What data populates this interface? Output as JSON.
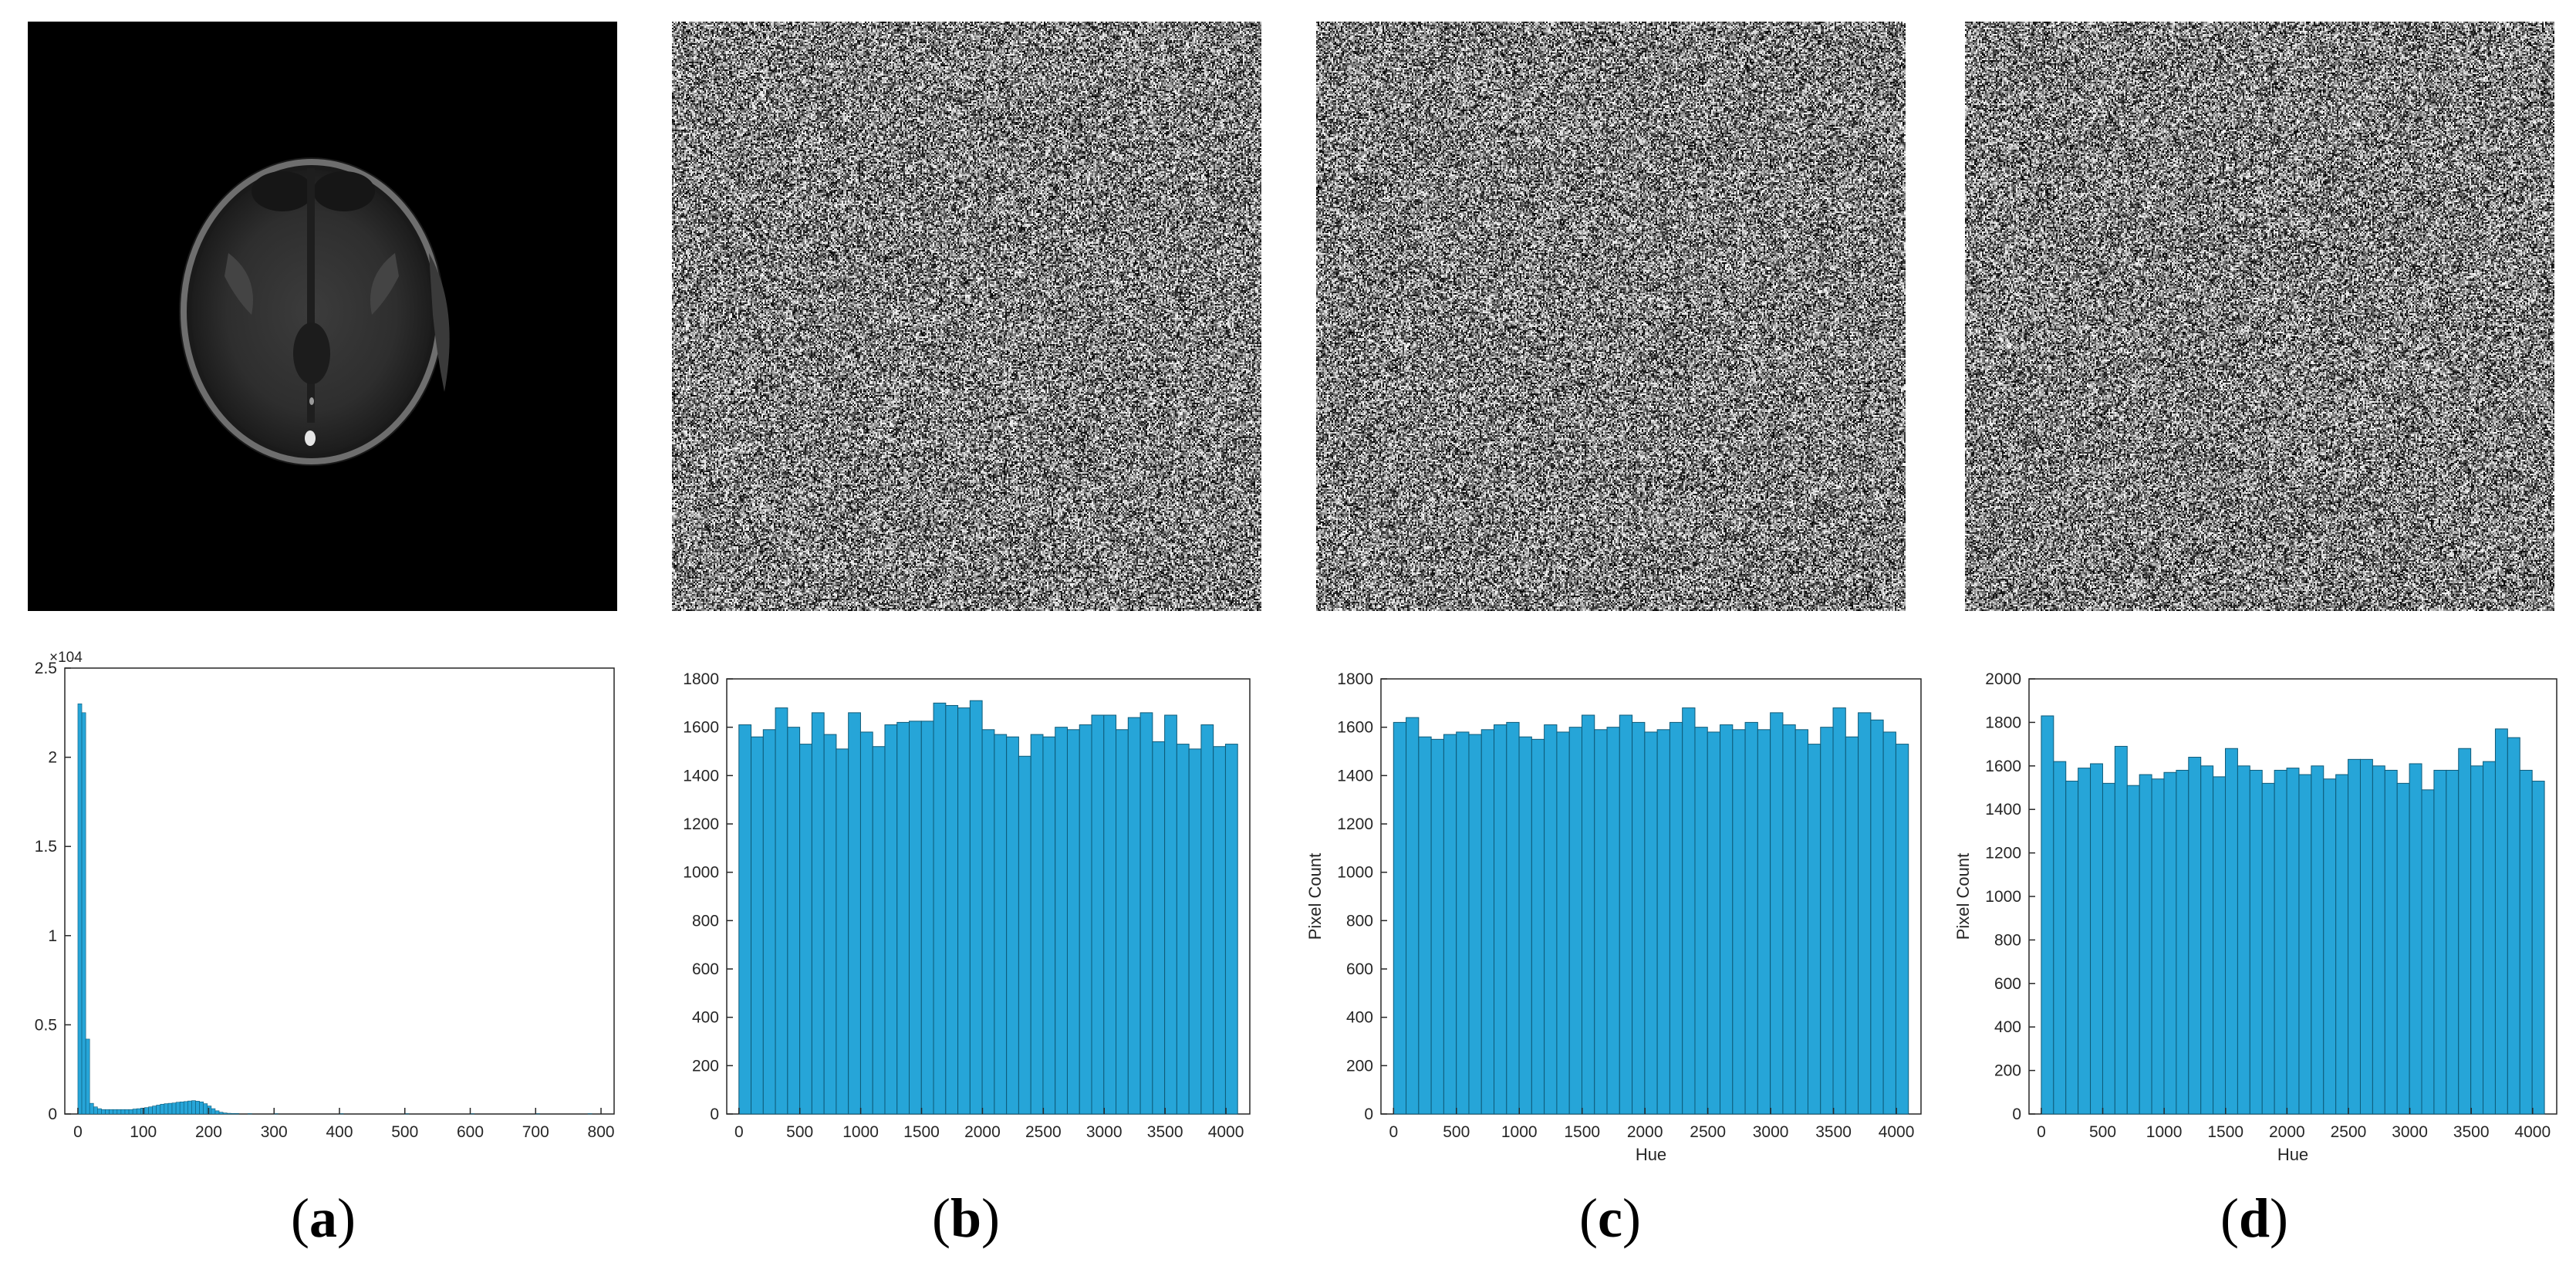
{
  "colors": {
    "bar_fill": "#26a5d8",
    "bar_edge": "#0e5a78",
    "axis": "#262626",
    "tick_text": "#262626"
  },
  "panels": [
    {
      "id": "a",
      "caption_open": "(",
      "caption_letter": "a",
      "caption_close": ")",
      "image": "brain-mri-slice"
    },
    {
      "id": "b",
      "caption_open": "(",
      "caption_letter": "b",
      "caption_close": ")",
      "image": "encrypted-noise"
    },
    {
      "id": "c",
      "caption_open": "(",
      "caption_letter": "c",
      "caption_close": ")",
      "image": "encrypted-noise"
    },
    {
      "id": "d",
      "caption_open": "(",
      "caption_letter": "d",
      "caption_close": ")",
      "image": "encrypted-noise"
    }
  ],
  "chart_data": [
    {
      "panel": "a",
      "type": "bar",
      "xlabel": "",
      "ylabel": "",
      "y_exponent_label": "×10^4",
      "xlim": [
        -20,
        820
      ],
      "ylim": [
        0,
        2.5
      ],
      "xticks": [
        0,
        100,
        200,
        300,
        400,
        500,
        600,
        700,
        800
      ],
      "yticks": [
        0,
        0.5,
        1,
        1.5,
        2,
        2.5
      ],
      "ytick_labels": [
        "0",
        "0.5",
        "1",
        "1.5",
        "2",
        "2.5"
      ],
      "bin_width": 6,
      "x": [
        0,
        6,
        12,
        18,
        24,
        30,
        36,
        42,
        48,
        54,
        60,
        66,
        72,
        78,
        84,
        90,
        96,
        102,
        108,
        114,
        120,
        126,
        132,
        138,
        144,
        150,
        156,
        162,
        168,
        174,
        180,
        186,
        192,
        198,
        204,
        210,
        216,
        222,
        228,
        234,
        240,
        260,
        300,
        400,
        500,
        600,
        700,
        780
      ],
      "values": [
        2.3,
        2.25,
        0.42,
        0.06,
        0.04,
        0.03,
        0.025,
        0.025,
        0.025,
        0.025,
        0.025,
        0.025,
        0.025,
        0.025,
        0.028,
        0.03,
        0.033,
        0.036,
        0.04,
        0.045,
        0.05,
        0.055,
        0.058,
        0.06,
        0.062,
        0.066,
        0.068,
        0.07,
        0.073,
        0.075,
        0.072,
        0.068,
        0.058,
        0.045,
        0.03,
        0.018,
        0.01,
        0.006,
        0.004,
        0.003,
        0.003,
        0.002,
        0.002,
        0.002,
        0.002,
        0.002,
        0.002,
        0.002
      ]
    },
    {
      "panel": "b",
      "type": "bar",
      "xlabel": "",
      "ylabel": "",
      "xlim": [
        -100,
        4196
      ],
      "ylim": [
        0,
        1800
      ],
      "xticks": [
        0,
        500,
        1000,
        1500,
        2000,
        2500,
        3000,
        3500,
        4000
      ],
      "yticks": [
        0,
        200,
        400,
        600,
        800,
        1000,
        1200,
        1400,
        1600,
        1800
      ],
      "values": [
        1610,
        1560,
        1590,
        1680,
        1600,
        1530,
        1660,
        1570,
        1510,
        1660,
        1580,
        1520,
        1610,
        1620,
        1625,
        1625,
        1700,
        1690,
        1680,
        1710,
        1590,
        1570,
        1560,
        1480,
        1570,
        1560,
        1600,
        1590,
        1610,
        1650,
        1650,
        1590,
        1640,
        1660,
        1540,
        1650,
        1530,
        1510,
        1610,
        1520,
        1530
      ]
    },
    {
      "panel": "c",
      "type": "bar",
      "xlabel": "Hue",
      "ylabel": "Pixel Count",
      "xlim": [
        -100,
        4196
      ],
      "ylim": [
        0,
        1800
      ],
      "xticks": [
        0,
        500,
        1000,
        1500,
        2000,
        2500,
        3000,
        3500,
        4000
      ],
      "yticks": [
        0,
        200,
        400,
        600,
        800,
        1000,
        1200,
        1400,
        1600,
        1800
      ],
      "values": [
        1620,
        1640,
        1560,
        1550,
        1570,
        1580,
        1570,
        1590,
        1610,
        1620,
        1560,
        1550,
        1610,
        1580,
        1600,
        1650,
        1590,
        1600,
        1650,
        1620,
        1580,
        1590,
        1620,
        1680,
        1600,
        1580,
        1610,
        1590,
        1620,
        1590,
        1660,
        1610,
        1590,
        1530,
        1600,
        1680,
        1560,
        1660,
        1630,
        1580,
        1530
      ]
    },
    {
      "panel": "d",
      "type": "bar",
      "xlabel": "Hue",
      "ylabel": "Pixel Count",
      "xlim": [
        -100,
        4196
      ],
      "ylim": [
        0,
        2000
      ],
      "xticks": [
        0,
        500,
        1000,
        1500,
        2000,
        2500,
        3000,
        3500,
        4000
      ],
      "yticks": [
        0,
        200,
        400,
        600,
        800,
        1000,
        1200,
        1400,
        1600,
        1800,
        2000
      ],
      "values": [
        1830,
        1620,
        1530,
        1590,
        1610,
        1520,
        1690,
        1510,
        1560,
        1540,
        1570,
        1580,
        1640,
        1600,
        1550,
        1680,
        1600,
        1580,
        1520,
        1580,
        1590,
        1560,
        1600,
        1540,
        1560,
        1630,
        1630,
        1600,
        1580,
        1520,
        1610,
        1490,
        1580,
        1580,
        1680,
        1600,
        1620,
        1770,
        1730,
        1580,
        1530
      ]
    }
  ]
}
